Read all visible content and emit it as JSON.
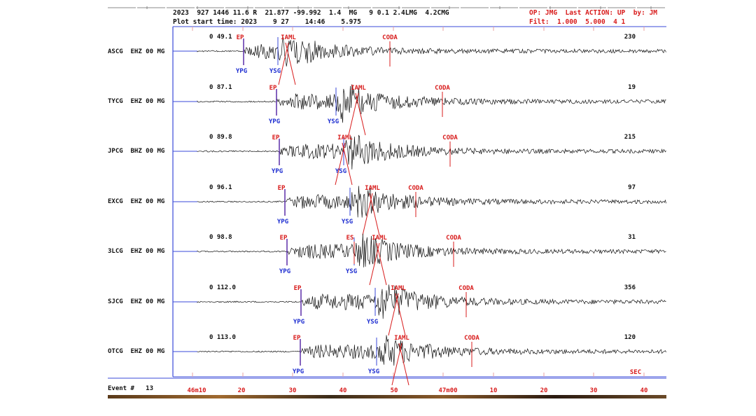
{
  "header": {
    "event_line": "2023  927 1446 11.6 R  21.877 -99.992  1.4  MG   9 0.1 2.4LMG  4.2CMG",
    "plot_start": "Plot start time: 2023    9 27    14:46    5.975",
    "op_line": "OP: JMG  Last ACTION: UP  by: JM",
    "filter_line": "Filt:  1.000  5.000  4 1"
  },
  "stations": [
    {
      "label": "ASCG  EHZ 00 MG",
      "dist": "0  49.1",
      "amp": "230"
    },
    {
      "label": "TYCG  EHZ 00 MG",
      "dist": "0  87.1",
      "amp": "19"
    },
    {
      "label": "JPCG  BHZ 00 MG",
      "dist": "0  89.8",
      "amp": "215"
    },
    {
      "label": "EXCG  EHZ 00 MG",
      "dist": "0  96.1",
      "amp": "97"
    },
    {
      "label": "3LCG  EHZ 00 MG",
      "dist": "0  98.8",
      "amp": "31"
    },
    {
      "label": "SJCG  EHZ 00 MG",
      "dist": "0 112.0",
      "amp": "356"
    },
    {
      "label": "OTCG  EHZ 00 MG",
      "dist": "0 113.0",
      "amp": "120"
    }
  ],
  "phase_labels": {
    "ep": "EP",
    "es": "ES",
    "ypg": "YPG",
    "ysg": "YSG",
    "iaml": "IAML",
    "coda": "CODA"
  },
  "bottom": {
    "event": "Event #   13",
    "axis_labels": [
      "46m10",
      "20",
      "30",
      "40",
      "50",
      "47m00",
      "10",
      "20",
      "30",
      "40"
    ],
    "sec": "SEC"
  },
  "colors": {
    "trace": "#111111",
    "phase_red": "#d81c1c",
    "phase_blue": "#1f2fd1",
    "frame_blue": "#3a4ad8",
    "tick_pink": "#e8a0a0"
  }
}
